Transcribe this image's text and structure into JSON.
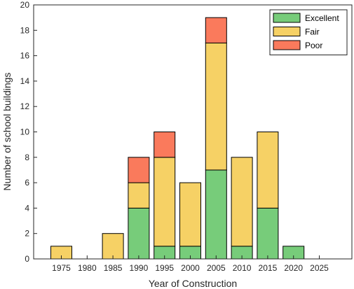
{
  "chart_data": {
    "type": "bar",
    "stacked": true,
    "categories": [
      "1975",
      "1980",
      "1985",
      "1990",
      "1995",
      "2000",
      "2005",
      "2010",
      "2015",
      "2020",
      "2025"
    ],
    "series": [
      {
        "name": "Excellent",
        "color": "#77cc7a",
        "values": [
          0,
          0,
          0,
          4,
          1,
          1,
          7,
          1,
          4,
          1,
          0
        ]
      },
      {
        "name": "Fair",
        "color": "#f6d165",
        "values": [
          1,
          0,
          2,
          2,
          7,
          5,
          10,
          7,
          6,
          0,
          0
        ]
      },
      {
        "name": "Poor",
        "color": "#fa7a5c",
        "values": [
          0,
          0,
          0,
          2,
          2,
          0,
          2,
          0,
          0,
          0,
          0
        ]
      }
    ],
    "xlabel": "Year of Construction",
    "ylabel": "Number of school buildings",
    "ylim": [
      0,
      20
    ],
    "yticks": [
      0,
      2,
      4,
      6,
      8,
      10,
      12,
      14,
      16,
      18,
      20
    ],
    "grid": false,
    "legend_position": "top-right"
  }
}
